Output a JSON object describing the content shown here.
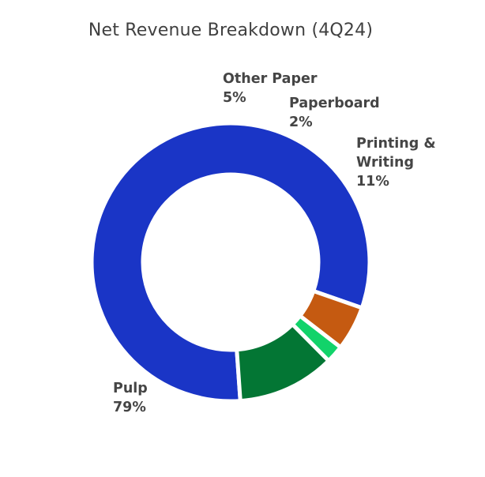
{
  "chart_data": {
    "type": "pie",
    "title": "Net Revenue Breakdown (4Q24)",
    "slices": [
      {
        "label": "Pulp",
        "label_lines": [
          "Pulp"
        ],
        "value": 79,
        "value_label": "79%",
        "color": "#1a35c6"
      },
      {
        "label": "Other Paper",
        "label_lines": [
          "Other Paper"
        ],
        "value": 5,
        "value_label": "5%",
        "color": "#c55a11"
      },
      {
        "label": "Paperboard",
        "label_lines": [
          "Paperboard"
        ],
        "value": 2,
        "value_label": "2%",
        "color": "#12d36a"
      },
      {
        "label": "Printing & Writing",
        "label_lines": [
          "Printing &",
          "Writing"
        ],
        "value": 11,
        "value_label": "11%",
        "color": "#037634"
      }
    ]
  }
}
